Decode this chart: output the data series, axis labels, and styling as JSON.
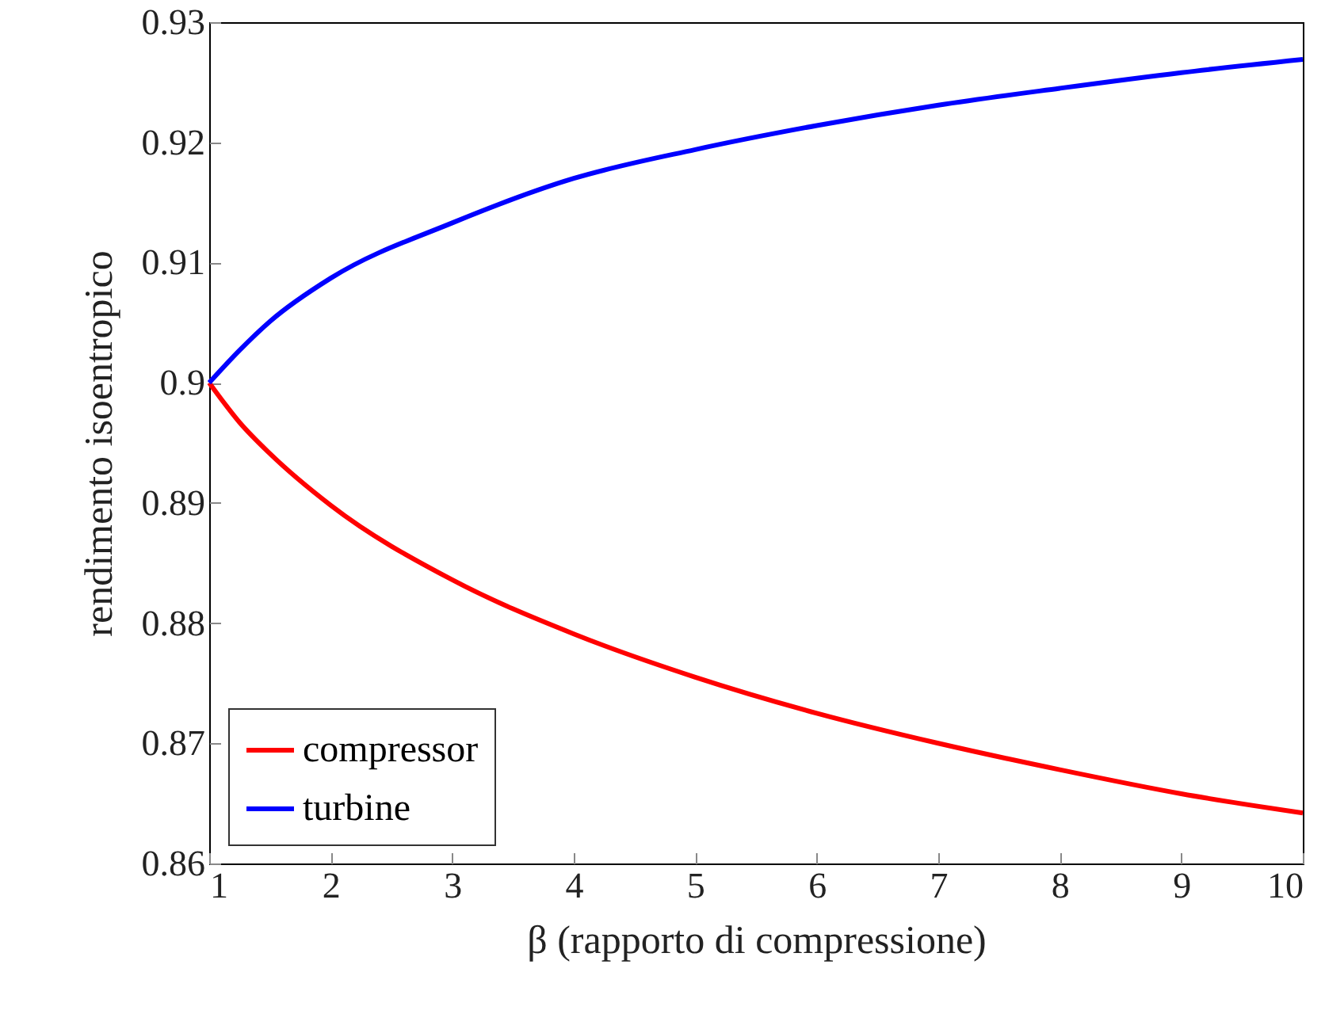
{
  "chart_data": {
    "type": "line",
    "xlabel": "β (rapporto di compressione)",
    "ylabel": "rendimento isoentropico",
    "x": [
      1,
      1.25,
      1.5,
      2,
      3,
      4,
      5,
      6,
      7,
      8,
      9,
      10
    ],
    "series": [
      {
        "name": "compressor",
        "color": "#ff0000",
        "values": [
          0.9,
          0.8967,
          0.8941,
          0.8898,
          0.8836,
          0.8791,
          0.8755,
          0.8725,
          0.87,
          0.8678,
          0.8658,
          0.8642
        ]
      },
      {
        "name": "turbine",
        "color": "#0000ff",
        "values": [
          0.9,
          0.9027,
          0.9051,
          0.9087,
          0.9133,
          0.917,
          0.9194,
          0.9214,
          0.9231,
          0.9245,
          0.9258,
          0.9269
        ]
      }
    ],
    "xlim": [
      1,
      10
    ],
    "ylim": [
      0.86,
      0.93
    ],
    "xticks": [
      1,
      2,
      3,
      4,
      5,
      6,
      7,
      8,
      9,
      10
    ],
    "yticks": [
      0.86,
      0.87,
      0.88,
      0.89,
      0.9,
      0.91,
      0.92,
      0.93
    ],
    "grid": false,
    "legend": "bottom left",
    "marker": "none",
    "line_style": "solid"
  }
}
